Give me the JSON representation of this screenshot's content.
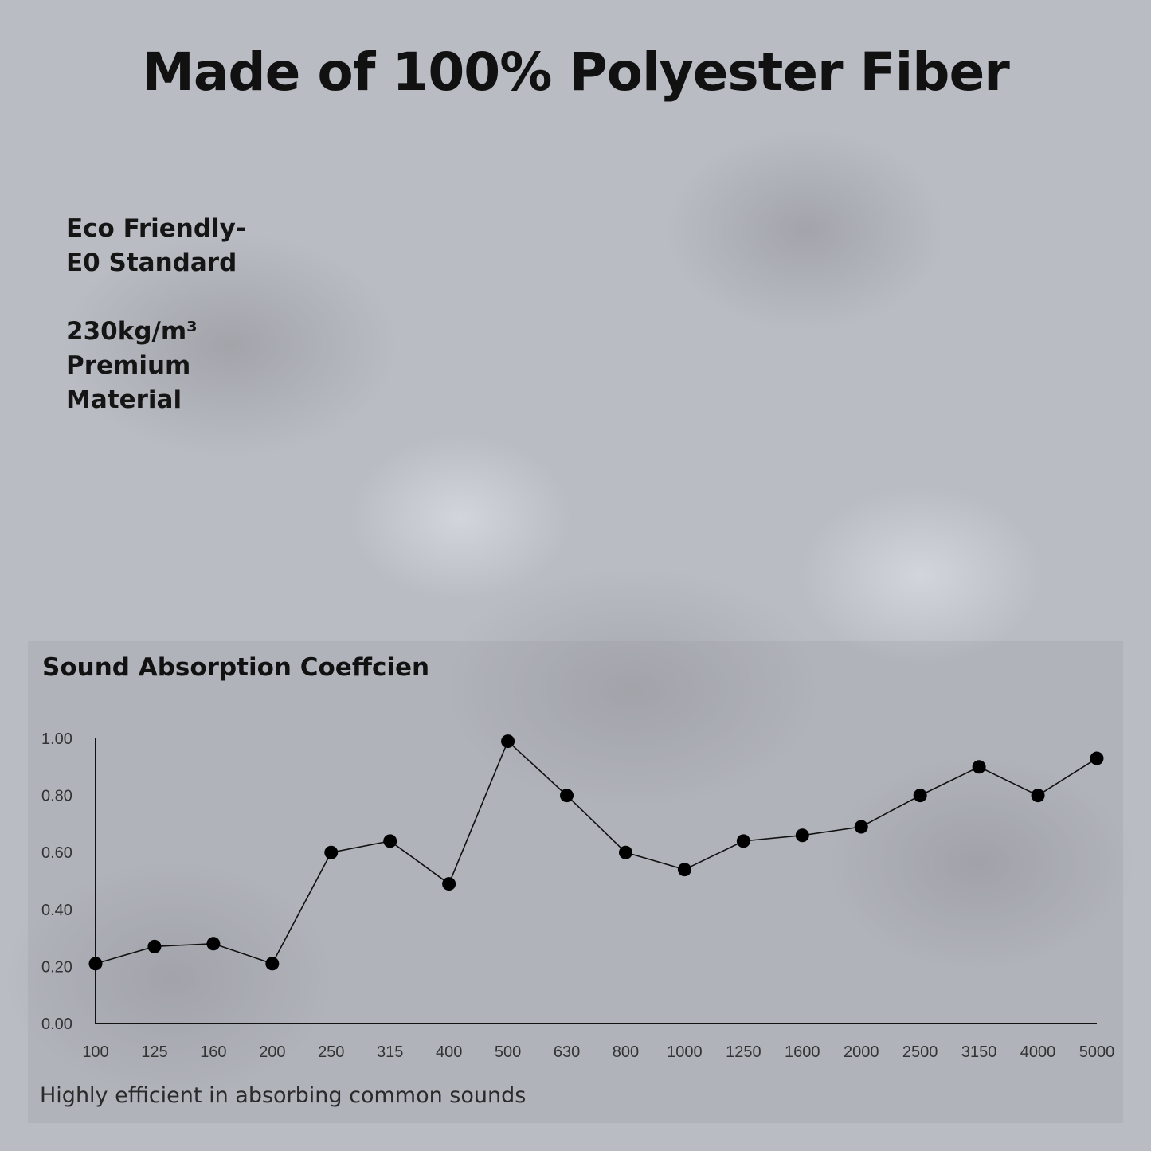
{
  "headline": "Made of 100% Polyester Fiber",
  "features": [
    "Eco Friendly-",
    "E0 Standard",
    "230kg/m³",
    "Premium",
    "Material"
  ],
  "caption": "Highly efficient in absorbing common sounds",
  "chart_data": {
    "type": "line",
    "title": "Sound Absorption Coeffcien",
    "xlabel": "",
    "ylabel": "",
    "categories": [
      "100",
      "125",
      "160",
      "200",
      "250",
      "315",
      "400",
      "500",
      "630",
      "800",
      "1000",
      "1250",
      "1600",
      "2000",
      "2500",
      "3150",
      "4000",
      "5000"
    ],
    "values": [
      0.21,
      0.27,
      0.28,
      0.21,
      0.6,
      0.64,
      0.49,
      0.99,
      0.8,
      0.6,
      0.54,
      0.64,
      0.66,
      0.69,
      0.8,
      0.9,
      0.8,
      0.93
    ],
    "yticks": [
      "0.00",
      "0.20",
      "0.40",
      "0.60",
      "0.80",
      "1.00"
    ],
    "ylim": [
      0,
      1
    ],
    "grid": false,
    "line_color": "#111111",
    "marker_color": "#000000"
  }
}
